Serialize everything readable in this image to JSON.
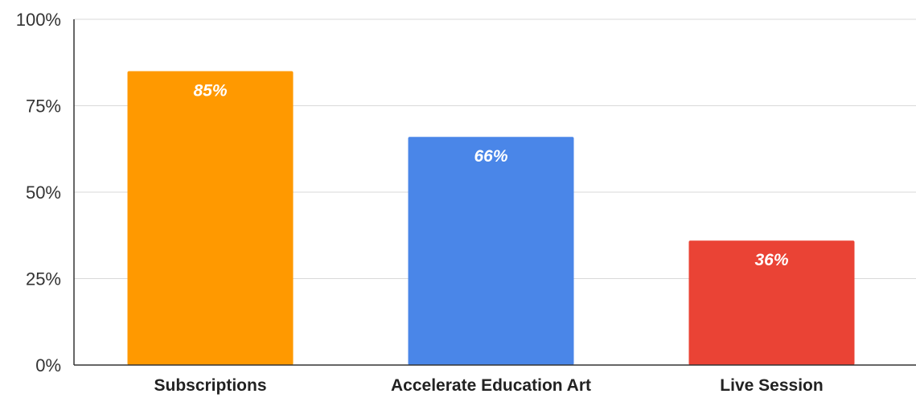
{
  "chart_data": {
    "type": "bar",
    "categories": [
      "Subscriptions",
      "Accelerate Education Art",
      "Live Session"
    ],
    "values": [
      85,
      66,
      36
    ],
    "data_labels": [
      "85%",
      "66%",
      "36%"
    ],
    "colors": [
      "#ff9900",
      "#4a86e8",
      "#ea4335"
    ],
    "ylim": [
      0,
      100
    ],
    "yticks": [
      0,
      25,
      50,
      75,
      100
    ],
    "ytick_labels": [
      "0%",
      "25%",
      "50%",
      "75%",
      "100%"
    ],
    "grid": true,
    "legend": "none"
  }
}
